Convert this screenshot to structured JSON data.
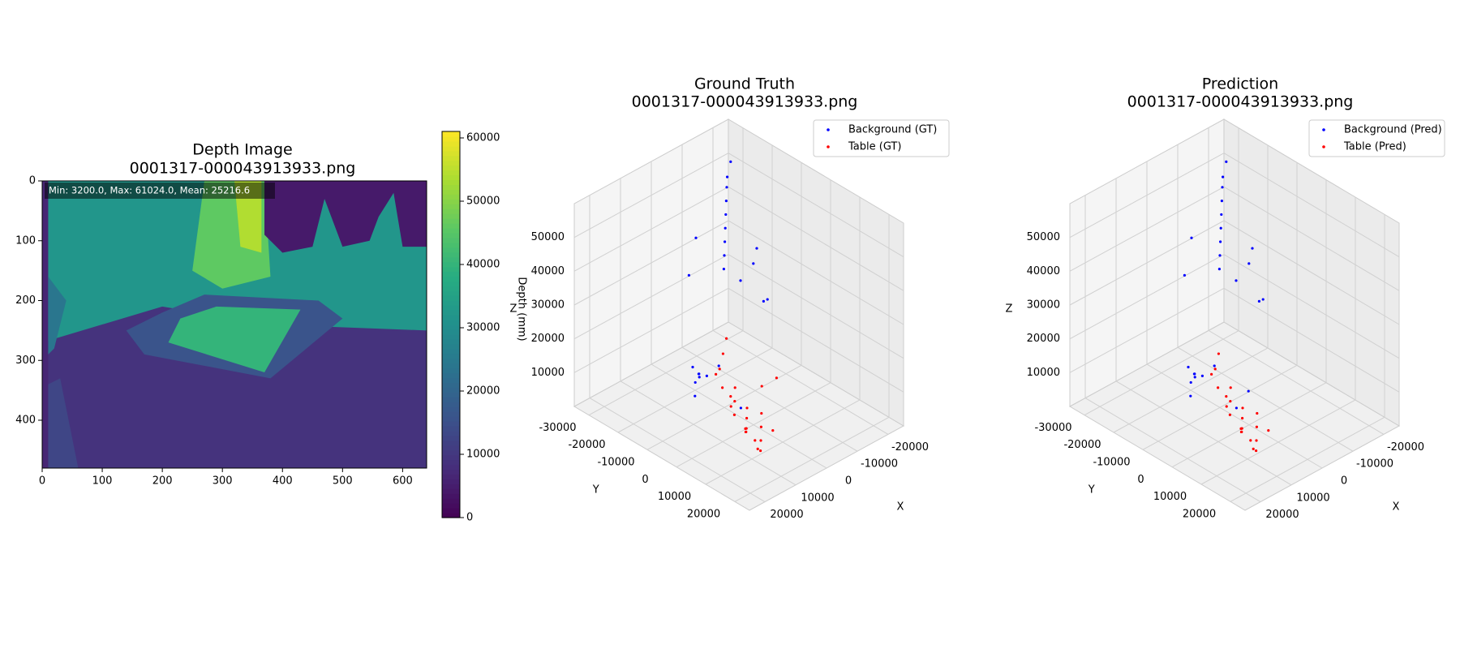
{
  "chart_data": [
    {
      "type": "image",
      "title": "Depth Image",
      "subtitle": "0001317-000043913933.png",
      "annotation": "Min: 3200.0, Max: 61024.0, Mean: 25216.6",
      "cmap": "viridis",
      "xlim": [
        0,
        640
      ],
      "ylim": [
        480,
        0
      ],
      "xticks": [
        0,
        100,
        200,
        300,
        400,
        500,
        600
      ],
      "yticks": [
        0,
        100,
        200,
        300,
        400
      ],
      "clim": [
        0,
        61024
      ],
      "cticks": [
        0,
        10000,
        20000,
        30000,
        40000,
        50000,
        60000
      ],
      "regions": [
        {
          "value": 9000,
          "points": [
            [
              0,
              0
            ],
            [
              640,
              0
            ],
            [
              640,
              480
            ],
            [
              0,
              480
            ]
          ]
        },
        {
          "value": 32000,
          "points": [
            [
              0,
              0
            ],
            [
              640,
              0
            ],
            [
              640,
              250
            ],
            [
              380,
              240
            ],
            [
              200,
              210
            ],
            [
              0,
              270
            ]
          ]
        },
        {
          "value": 46000,
          "points": [
            [
              270,
              0
            ],
            [
              370,
              0
            ],
            [
              380,
              160
            ],
            [
              300,
              180
            ],
            [
              250,
              150
            ]
          ]
        },
        {
          "value": 54000,
          "points": [
            [
              320,
              0
            ],
            [
              365,
              0
            ],
            [
              365,
              120
            ],
            [
              330,
              110
            ]
          ]
        },
        {
          "value": 4500,
          "points": [
            [
              370,
              0
            ],
            [
              640,
              0
            ],
            [
              640,
              110
            ],
            [
              600,
              110
            ],
            [
              585,
              20
            ],
            [
              560,
              60
            ],
            [
              545,
              100
            ],
            [
              500,
              110
            ],
            [
              470,
              30
            ],
            [
              450,
              110
            ],
            [
              400,
              120
            ],
            [
              370,
              90
            ]
          ]
        },
        {
          "value": 16000,
          "points": [
            [
              200,
              220
            ],
            [
              270,
              190
            ],
            [
              460,
              200
            ],
            [
              500,
              230
            ],
            [
              380,
              330
            ],
            [
              170,
              290
            ],
            [
              140,
              250
            ]
          ]
        },
        {
          "value": 40000,
          "points": [
            [
              230,
              230
            ],
            [
              290,
              210
            ],
            [
              430,
              215
            ],
            [
              370,
              320
            ],
            [
              210,
              270
            ]
          ]
        },
        {
          "value": 6500,
          "points": [
            [
              0,
              0
            ],
            [
              10,
              0
            ],
            [
              10,
              480
            ],
            [
              0,
              480
            ]
          ]
        },
        {
          "value": 13000,
          "points": [
            [
              10,
              340
            ],
            [
              30,
              330
            ],
            [
              60,
              480
            ],
            [
              10,
              480
            ]
          ]
        },
        {
          "value": 24000,
          "points": [
            [
              10,
              160
            ],
            [
              40,
              200
            ],
            [
              20,
              280
            ],
            [
              10,
              290
            ]
          ]
        }
      ]
    },
    {
      "type": "scatter3d",
      "title": "Ground Truth",
      "subtitle": "0001317-000043913933.png",
      "xlabel": "X",
      "ylabel": "Y",
      "zlabels": [
        "Z",
        "Depth (mm)"
      ],
      "xlim": [
        -25000,
        25000
      ],
      "ylim": [
        -35000,
        25000
      ],
      "zlim": [
        0,
        60000
      ],
      "xticks": [
        -20000,
        -10000,
        0,
        10000,
        20000
      ],
      "yticks": [
        -30000,
        -20000,
        -10000,
        0,
        10000,
        20000
      ],
      "zticks": [
        10000,
        20000,
        30000,
        40000,
        50000
      ],
      "series": [
        {
          "name": "Background (GT)",
          "color": "#0000ff",
          "x": [
            -18000,
            -15000,
            -12000,
            -9000,
            -6000,
            -3000,
            0,
            3000,
            -20000,
            -17000,
            -14000,
            15000,
            17000,
            19000,
            18000,
            16000,
            -5000,
            2000,
            -10000,
            10000,
            12000,
            14000,
            -21000,
            -8000,
            6000
          ],
          "y": [
            -28000,
            -25000,
            -22000,
            -19000,
            -16000,
            -13000,
            -10000,
            -7000,
            -20000,
            -18000,
            -10000,
            -5000,
            -2000,
            0,
            3000,
            5000,
            -25000,
            -20000,
            -15000,
            -8000,
            -6000,
            -4000,
            -30000,
            -5000,
            2000
          ],
          "z": [
            50000,
            50000,
            49000,
            48000,
            47000,
            46000,
            45000,
            44000,
            32000,
            30000,
            25000,
            22000,
            20000,
            18000,
            25000,
            28000,
            40000,
            35000,
            30000,
            15000,
            18000,
            20000,
            52000,
            30000,
            9000
          ]
        },
        {
          "name": "Table (GT)",
          "color": "#ff0000",
          "x": [
            4000,
            6000,
            8000,
            10000,
            12000,
            14000,
            5000,
            7000,
            9000,
            11000,
            13000,
            6000,
            8000,
            10000,
            12000,
            3000,
            15000,
            9000,
            7000,
            11000,
            2000,
            16000,
            8000,
            10000,
            5000
          ],
          "y": [
            2000,
            4000,
            6000,
            8000,
            10000,
            12000,
            8000,
            10000,
            12000,
            14000,
            6000,
            0,
            2000,
            4000,
            2000,
            6000,
            8000,
            10000,
            14000,
            0,
            10000,
            4000,
            -2000,
            12000,
            -4000
          ],
          "z": [
            8000,
            7000,
            6000,
            7000,
            9000,
            12000,
            10000,
            8000,
            6000,
            5000,
            15000,
            14000,
            12000,
            10000,
            18000,
            16000,
            20000,
            5000,
            9000,
            22000,
            20000,
            25000,
            24000,
            4000,
            26000
          ]
        }
      ]
    },
    {
      "type": "scatter3d",
      "title": "Prediction",
      "subtitle": "0001317-000043913933.png",
      "xlabel": "X",
      "ylabel": "Y",
      "zlabels": [
        "Z"
      ],
      "xlim": [
        -25000,
        25000
      ],
      "ylim": [
        -35000,
        25000
      ],
      "zlim": [
        0,
        60000
      ],
      "xticks": [
        -20000,
        -10000,
        0,
        10000,
        20000
      ],
      "yticks": [
        -30000,
        -20000,
        -10000,
        0,
        10000,
        20000
      ],
      "zticks": [
        10000,
        20000,
        30000,
        40000,
        50000
      ],
      "series": [
        {
          "name": "Background (Pred)",
          "color": "#0000ff",
          "x": [
            -18000,
            -15000,
            -12000,
            -9000,
            -6000,
            -3000,
            0,
            3000,
            -20000,
            -17000,
            -14000,
            15000,
            17000,
            19000,
            18000,
            16000,
            -5000,
            2000,
            -10000,
            10000,
            12000,
            14000,
            -21000,
            -8000,
            6000,
            4000
          ],
          "y": [
            -28000,
            -25000,
            -22000,
            -19000,
            -16000,
            -13000,
            -10000,
            -7000,
            -20000,
            -18000,
            -10000,
            -5000,
            -2000,
            0,
            3000,
            5000,
            -25000,
            -20000,
            -15000,
            -8000,
            -6000,
            -4000,
            -30000,
            -5000,
            2000,
            4000
          ],
          "z": [
            50000,
            50000,
            49000,
            48000,
            47000,
            46000,
            45000,
            44000,
            32000,
            30000,
            25000,
            22000,
            20000,
            18000,
            25000,
            28000,
            40000,
            35000,
            30000,
            15000,
            18000,
            20000,
            52000,
            30000,
            9000,
            14000
          ]
        },
        {
          "name": "Table (Pred)",
          "color": "#ff0000",
          "x": [
            4000,
            6000,
            8000,
            10000,
            12000,
            14000,
            5000,
            7000,
            9000,
            11000,
            13000,
            6000,
            8000,
            10000,
            12000,
            15000,
            9000,
            7000,
            11000,
            16000,
            8000,
            10000
          ],
          "y": [
            2000,
            4000,
            6000,
            8000,
            10000,
            12000,
            8000,
            10000,
            12000,
            14000,
            6000,
            0,
            2000,
            4000,
            2000,
            8000,
            10000,
            14000,
            0,
            4000,
            -2000,
            12000
          ],
          "z": [
            8000,
            7000,
            6000,
            7000,
            9000,
            12000,
            10000,
            8000,
            6000,
            5000,
            15000,
            14000,
            12000,
            10000,
            18000,
            20000,
            5000,
            9000,
            22000,
            25000,
            24000,
            4000
          ]
        }
      ]
    }
  ]
}
